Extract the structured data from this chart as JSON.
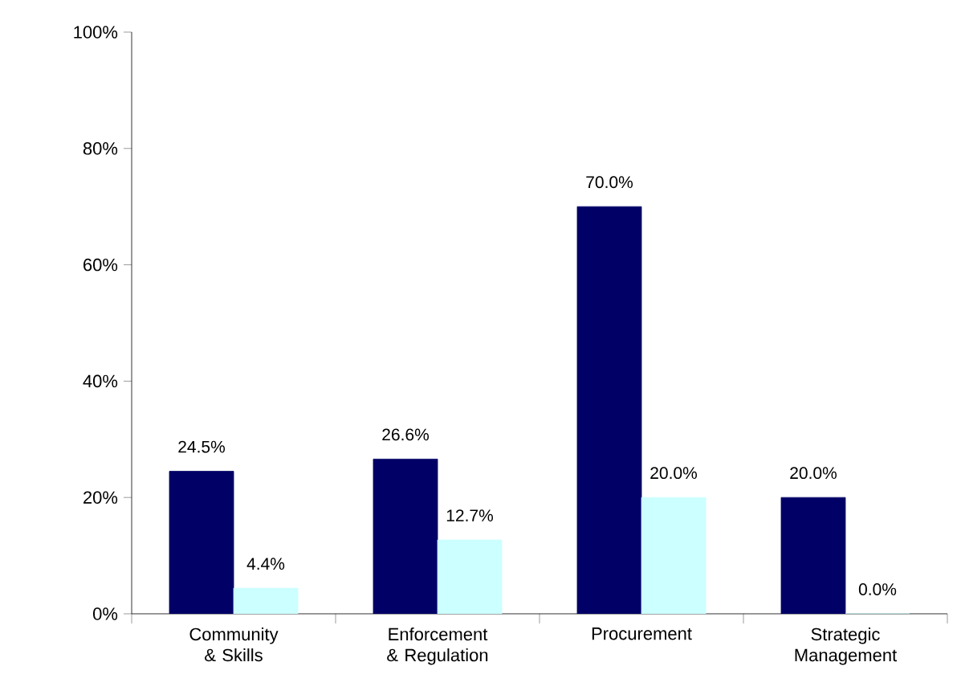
{
  "chart_data": {
    "type": "bar",
    "categories": [
      "Community & Skills",
      "Enforcement & Regulation",
      "Procurement",
      "Strategic Management"
    ],
    "series": [
      {
        "color": "#000066",
        "values": [
          24.5,
          26.6,
          70.0,
          20.0
        ],
        "value_labels": [
          "24.5%",
          "26.6%",
          "70.0%",
          "20.0%"
        ]
      },
      {
        "color": "#ccffff",
        "values": [
          4.4,
          12.7,
          20.0,
          0.0
        ],
        "value_labels": [
          "4.4%",
          "12.7%",
          "20.0%",
          "0.0%"
        ]
      }
    ],
    "ylim": [
      0,
      100
    ],
    "yticks": [
      {
        "value": 0,
        "label": "0%"
      },
      {
        "value": 20,
        "label": "20%"
      },
      {
        "value": 40,
        "label": "40%"
      },
      {
        "value": 60,
        "label": "60%"
      },
      {
        "value": 80,
        "label": "80%"
      },
      {
        "value": 100,
        "label": "100%"
      }
    ],
    "grid": false
  }
}
